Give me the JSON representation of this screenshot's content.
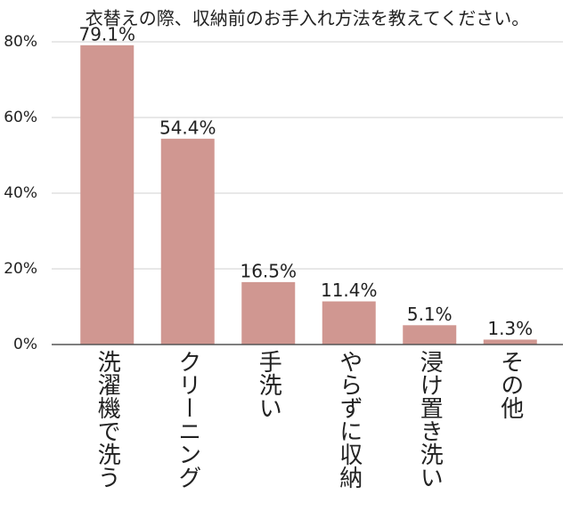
{
  "chart_data": {
    "type": "bar",
    "title": "衣替えの際、収納前のお手入れ方法を教えてください。",
    "categories": [
      "洗濯機で洗う",
      "クリーニング",
      "手洗い",
      "やらずに収納",
      "浸け置き洗い",
      "その他"
    ],
    "values": [
      79.1,
      54.4,
      16.5,
      11.4,
      5.1,
      1.3
    ],
    "value_labels": [
      "79.1%",
      "54.4%",
      "16.5%",
      "11.4%",
      "5.1%",
      "1.3%"
    ],
    "color": "#d09791",
    "ylim": [
      0,
      80
    ],
    "yticks": [
      {
        "value": 0,
        "label": "0%"
      },
      {
        "value": 20,
        "label": "20%"
      },
      {
        "value": 40,
        "label": "40%"
      },
      {
        "value": 60,
        "label": "60%"
      },
      {
        "value": 80,
        "label": "80%"
      }
    ],
    "grid": true
  }
}
